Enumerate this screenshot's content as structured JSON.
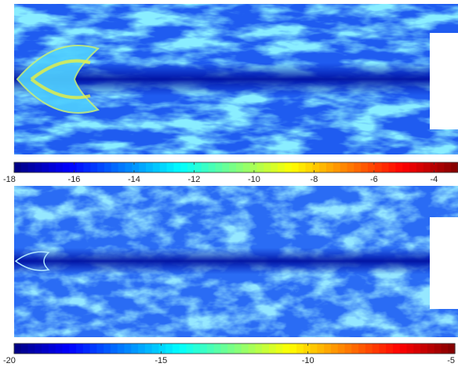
{
  "chart_data": [
    {
      "type": "colorbar",
      "colormap": "jet",
      "xlim": [
        -18,
        -3.2
      ],
      "xticks": [
        -18,
        -16,
        -14,
        -12,
        -10,
        -8,
        -6,
        -4
      ]
    },
    {
      "type": "colorbar",
      "colormap": "jet",
      "xlim": [
        -20,
        -5
      ],
      "xticks": [
        -20,
        -15,
        -10,
        -5
      ]
    }
  ]
}
